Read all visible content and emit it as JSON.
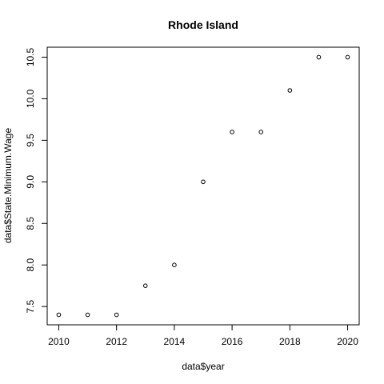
{
  "chart_data": {
    "type": "scatter",
    "title": "Rhode Island",
    "xlabel": "data$year",
    "ylabel": "data$State.Minimum.Wage",
    "x": [
      2010,
      2011,
      2012,
      2013,
      2014,
      2015,
      2016,
      2017,
      2018,
      2019,
      2020
    ],
    "y": [
      7.4,
      7.4,
      7.4,
      7.75,
      8.0,
      9.0,
      9.6,
      9.6,
      10.1,
      10.5,
      10.5
    ],
    "xlim": [
      2009.6,
      2020.4
    ],
    "ylim": [
      7.28,
      10.62
    ],
    "xticks": [
      2010,
      2012,
      2014,
      2016,
      2018,
      2020
    ],
    "yticks": [
      7.5,
      8.0,
      8.5,
      9.0,
      9.5,
      10.0,
      10.5
    ],
    "xtick_labels": [
      "2010",
      "2012",
      "2014",
      "2016",
      "2018",
      "2020"
    ],
    "ytick_labels": [
      "7.5",
      "8.0",
      "8.5",
      "9.0",
      "9.5",
      "10.0",
      "10.5"
    ],
    "grid": false,
    "marker": "open-circle",
    "marker_color": "#000000"
  }
}
